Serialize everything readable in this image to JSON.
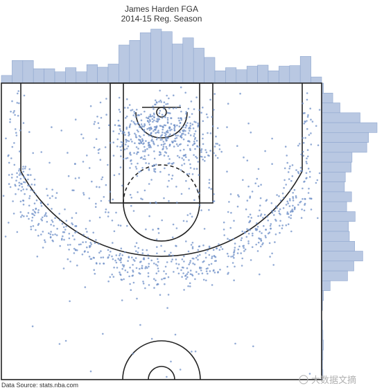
{
  "chart_data": {
    "type": "scatter",
    "title": "James Harden FGA",
    "subtitle": "2014-15 Reg. Season",
    "source": "Data Source: stats.nba.com",
    "x_range_ft": [
      -25,
      25
    ],
    "y_range_ft": [
      -4.75,
      42.5
    ],
    "colors": {
      "shots": "#6d8fc7",
      "hist_fill": "#b9c8e2",
      "hist_stroke": "#8ea6cf",
      "court": "#222222"
    },
    "shot_distribution": [
      {
        "zone": "rim",
        "count": 410,
        "center": [
          0,
          3.2
        ],
        "spread": [
          4.0,
          2.8
        ]
      },
      {
        "zone": "restricted-left",
        "count": 40,
        "center": [
          -5,
          5
        ],
        "spread": [
          2.5,
          3
        ]
      },
      {
        "zone": "restricted-right",
        "count": 40,
        "center": [
          5,
          5
        ],
        "spread": [
          2.5,
          3
        ]
      },
      {
        "zone": "left-corner-three",
        "count": 40,
        "center": [
          -22.7,
          4
        ],
        "spread": [
          0.8,
          6
        ]
      },
      {
        "zone": "right-corner-three",
        "count": 42,
        "center": [
          22.7,
          5
        ],
        "spread": [
          0.8,
          6
        ]
      },
      {
        "zone": "above-break-three",
        "count": 560,
        "arc_radius_ft": 24.8,
        "arc_spread_ft": 1.6
      },
      {
        "zone": "midrange",
        "count": 260,
        "center": [
          0,
          13
        ],
        "spread": [
          13,
          7
        ]
      },
      {
        "zone": "deep",
        "count": 18,
        "center": [
          0,
          37
        ],
        "spread": [
          10,
          3
        ]
      }
    ],
    "histogram_bins": 30,
    "watermark": "大数据文摘"
  }
}
